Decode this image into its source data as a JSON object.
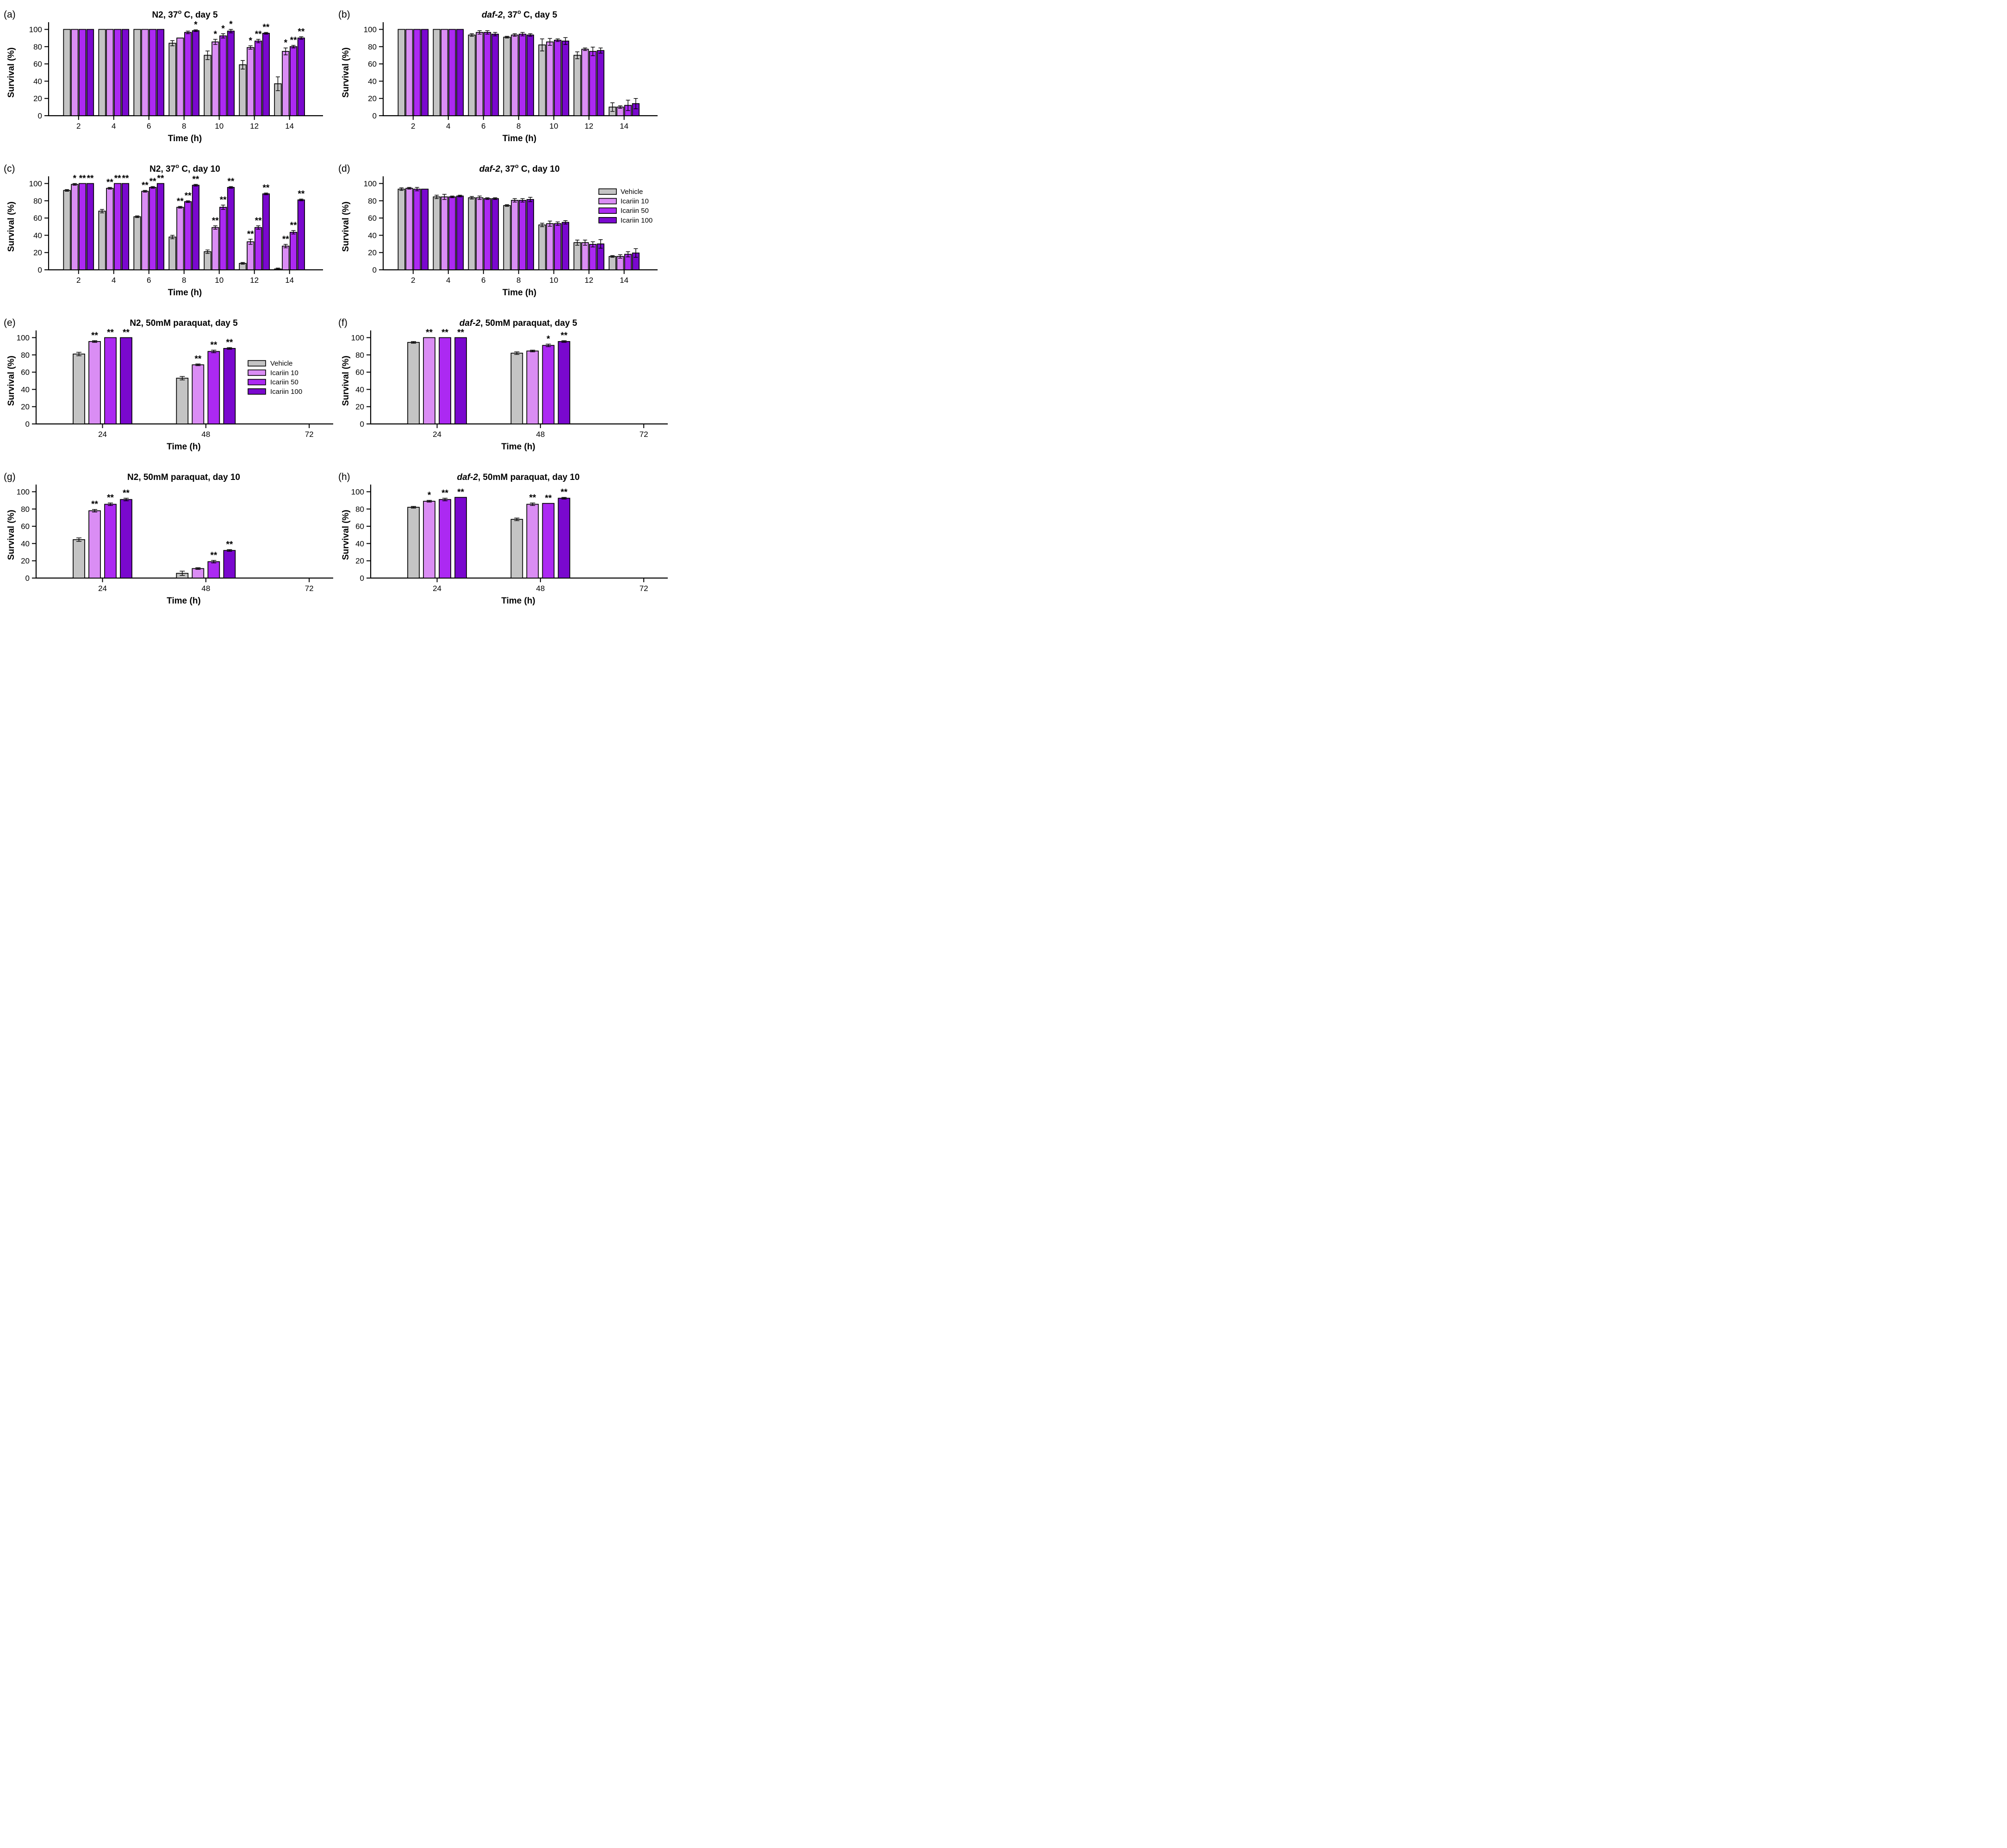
{
  "figure": {
    "background": "#FFFFFF",
    "ylabel": "Survival (%)",
    "xlabel": "Time (h)",
    "yticks": [
      0,
      20,
      40,
      60,
      80,
      100
    ],
    "ylim": [
      0,
      100
    ],
    "legend_labels": [
      "Vehicle",
      "Icariin 10",
      "Icariin 50",
      "Icariin 100"
    ],
    "series_colors": {
      "Vehicle": "#C4C4C4",
      "Icariin 10": "#DA8DF4",
      "Icariin 50": "#AC29F2",
      "Icariin 100": "#7A08CE"
    },
    "bar_outline": "#000000",
    "axis_color": "#000000"
  },
  "chart_data": [
    {
      "id": "a",
      "label": "(a)",
      "type": "bar",
      "title_text": "N2, 37° C, day 5",
      "title_parts": [
        {
          "text": "N2"
        },
        {
          "text": ", 37"
        },
        {
          "text": "o",
          "sup": true
        },
        {
          "text": " C, day 5"
        }
      ],
      "categories": [
        "2",
        "4",
        "6",
        "8",
        "10",
        "12",
        "14"
      ],
      "xlabel": "Time (h)",
      "ylabel": "Survival (%)",
      "ylim": [
        0,
        100
      ],
      "legend": null,
      "series": [
        {
          "name": "Vehicle",
          "values": [
            100,
            100,
            100,
            84,
            70,
            59,
            37
          ],
          "errors": [
            0,
            0,
            0,
            3,
            5,
            5,
            8
          ],
          "sig": [
            "",
            "",
            "",
            "",
            "",
            "",
            ""
          ]
        },
        {
          "name": "Icariin 10",
          "values": [
            100,
            100,
            100,
            90,
            85.5,
            79,
            74.5
          ],
          "errors": [
            0,
            0,
            0,
            0,
            3,
            2,
            4
          ],
          "sig": [
            "",
            "",
            "",
            "",
            "*",
            "*",
            "*"
          ]
        },
        {
          "name": "Icariin 50",
          "values": [
            100,
            100,
            100,
            96.5,
            92.5,
            86.5,
            80
          ],
          "errors": [
            0,
            0,
            0,
            1.5,
            2.5,
            2,
            1.5
          ],
          "sig": [
            "",
            "",
            "",
            "",
            "*",
            "**",
            "**"
          ]
        },
        {
          "name": "Icariin 100",
          "values": [
            100,
            100,
            100,
            98.5,
            98,
            95.5,
            90
          ],
          "errors": [
            0,
            0,
            0,
            1,
            2,
            1,
            1.5
          ],
          "sig": [
            "",
            "",
            "",
            "*",
            "*",
            "**",
            "**"
          ]
        }
      ]
    },
    {
      "id": "b",
      "label": "(b)",
      "type": "bar",
      "title_text": "daf-2, 37° C, day 5",
      "title_parts": [
        {
          "text": "daf-2",
          "italic": true
        },
        {
          "text": ", 37"
        },
        {
          "text": "o",
          "sup": true
        },
        {
          "text": " C, day 5"
        }
      ],
      "categories": [
        "2",
        "4",
        "6",
        "8",
        "10",
        "12",
        "14"
      ],
      "xlabel": "Time (h)",
      "ylabel": "Survival (%)",
      "ylim": [
        0,
        100
      ],
      "legend": null,
      "series": [
        {
          "name": "Vehicle",
          "values": [
            100,
            100,
            93.5,
            91,
            82,
            70,
            10
          ],
          "errors": [
            0,
            0,
            1.5,
            1,
            7,
            4,
            5
          ],
          "sig": [
            "",
            "",
            "",
            "",
            "",
            "",
            ""
          ]
        },
        {
          "name": "Icariin 10",
          "values": [
            100,
            100,
            96.5,
            93.5,
            85.5,
            77,
            10
          ],
          "errors": [
            0,
            0,
            2,
            1.5,
            4,
            1.5,
            1.5
          ],
          "sig": [
            "",
            "",
            "",
            "",
            "",
            "",
            ""
          ]
        },
        {
          "name": "Icariin 50",
          "values": [
            100,
            100,
            96.5,
            94.5,
            87.5,
            74.5,
            12
          ],
          "errors": [
            0,
            0,
            2,
            2,
            1.5,
            5,
            6
          ],
          "sig": [
            "",
            "",
            "",
            "",
            "",
            "",
            ""
          ]
        },
        {
          "name": "Icariin 100",
          "values": [
            100,
            100,
            94.5,
            93.5,
            86.5,
            75.5,
            14
          ],
          "errors": [
            0,
            0,
            2,
            1.5,
            4,
            3,
            6
          ],
          "sig": [
            "",
            "",
            "",
            "",
            "",
            "",
            ""
          ]
        }
      ]
    },
    {
      "id": "c",
      "label": "(c)",
      "type": "bar",
      "title_text": "N2, 37° C, day 10",
      "title_parts": [
        {
          "text": "N2"
        },
        {
          "text": ", 37"
        },
        {
          "text": "o",
          "sup": true
        },
        {
          "text": " C, day 10"
        }
      ],
      "categories": [
        "2",
        "4",
        "6",
        "8",
        "10",
        "12",
        "14"
      ],
      "xlabel": "Time (h)",
      "ylabel": "Survival (%)",
      "ylim": [
        0,
        100
      ],
      "legend": null,
      "series": [
        {
          "name": "Vehicle",
          "values": [
            92,
            68,
            61.5,
            38,
            21,
            7.5,
            1
          ],
          "errors": [
            1,
            2,
            1,
            2,
            2,
            1,
            1
          ],
          "sig": [
            "",
            "",
            "",
            "",
            "",
            "",
            ""
          ]
        },
        {
          "name": "Icariin 10",
          "values": [
            99,
            94.5,
            91,
            72.5,
            49,
            32.5,
            27.5
          ],
          "errors": [
            1,
            1,
            1,
            1,
            2,
            3,
            2
          ],
          "sig": [
            "*",
            "**",
            "**",
            "**",
            "**",
            "**",
            "**"
          ]
        },
        {
          "name": "Icariin 50",
          "values": [
            100,
            100,
            95.5,
            79,
            72.5,
            49,
            43.5
          ],
          "errors": [
            0,
            0,
            1,
            1,
            2.5,
            2,
            2
          ],
          "sig": [
            "**",
            "**",
            "**",
            "**",
            "**",
            "**",
            "**"
          ]
        },
        {
          "name": "Icariin 100",
          "values": [
            100,
            100,
            100,
            98,
            95.5,
            88,
            81
          ],
          "errors": [
            0,
            0,
            0,
            1,
            1,
            1,
            1
          ],
          "sig": [
            "**",
            "**",
            "**",
            "**",
            "**",
            "**",
            "**"
          ]
        }
      ]
    },
    {
      "id": "d",
      "label": "(d)",
      "type": "bar",
      "title_text": "daf-2, 37° C, day 10",
      "title_parts": [
        {
          "text": "daf-2",
          "italic": true
        },
        {
          "text": ", 37"
        },
        {
          "text": "o",
          "sup": true
        },
        {
          "text": " C, day 10"
        }
      ],
      "categories": [
        "2",
        "4",
        "6",
        "8",
        "10",
        "12",
        "14"
      ],
      "xlabel": "Time (h)",
      "ylabel": "Survival (%)",
      "ylim": [
        0,
        100
      ],
      "legend": "top",
      "series": [
        {
          "name": "Vehicle",
          "values": [
            93.5,
            84.5,
            83.5,
            74.5,
            52,
            31.5,
            15.5
          ],
          "errors": [
            1.5,
            2,
            1.5,
            1,
            2,
            3,
            1
          ],
          "sig": [
            "",
            "",
            "",
            "",
            "",
            "",
            ""
          ]
        },
        {
          "name": "Icariin 10",
          "values": [
            94.5,
            84.5,
            83.5,
            80.5,
            53.5,
            31.5,
            15.5
          ],
          "errors": [
            1,
            3,
            2,
            2,
            3,
            3,
            2
          ],
          "sig": [
            "",
            "",
            "",
            "",
            "",
            "",
            ""
          ]
        },
        {
          "name": "Icariin 50",
          "values": [
            93.5,
            84.5,
            82.5,
            80.5,
            53.5,
            29.5,
            18
          ],
          "errors": [
            2,
            1,
            1,
            2,
            2,
            3,
            3
          ],
          "sig": [
            "",
            "",
            "",
            "",
            "",
            "",
            ""
          ]
        },
        {
          "name": "Icariin 100",
          "values": [
            93.5,
            85.5,
            82.5,
            81.5,
            55,
            30,
            19.5
          ],
          "errors": [
            0,
            1,
            1,
            2.5,
            2,
            5,
            5
          ],
          "sig": [
            "",
            "",
            "",
            "",
            "",
            "",
            ""
          ]
        }
      ]
    },
    {
      "id": "e",
      "label": "(e)",
      "type": "bar",
      "title_text": "N2, 50mM paraquat, day 5",
      "title_parts": [
        {
          "text": "N2"
        },
        {
          "text": ", 50mM paraquat, day 5"
        }
      ],
      "categories": [
        "24",
        "48",
        "72"
      ],
      "xlabel": "Time (h)",
      "ylabel": "Survival (%)",
      "ylim": [
        0,
        100
      ],
      "legend": "mid",
      "series": [
        {
          "name": "Vehicle",
          "values": [
            81,
            53,
            null
          ],
          "errors": [
            2,
            2,
            0
          ],
          "sig": [
            "",
            "",
            ""
          ]
        },
        {
          "name": "Icariin 10",
          "values": [
            95.5,
            68.5,
            null
          ],
          "errors": [
            1,
            1,
            0
          ],
          "sig": [
            "**",
            "**",
            ""
          ]
        },
        {
          "name": "Icariin 50",
          "values": [
            100,
            84,
            null
          ],
          "errors": [
            0,
            1.5,
            0
          ],
          "sig": [
            "**",
            "**",
            ""
          ]
        },
        {
          "name": "Icariin 100",
          "values": [
            100,
            87.5,
            null
          ],
          "errors": [
            0,
            1,
            0
          ],
          "sig": [
            "**",
            "**",
            ""
          ]
        }
      ]
    },
    {
      "id": "f",
      "label": "(f)",
      "type": "bar",
      "title_text": "daf-2, 50mM paraquat, day 5",
      "title_parts": [
        {
          "text": "daf-2",
          "italic": true
        },
        {
          "text": ", 50mM paraquat, day 5"
        }
      ],
      "categories": [
        "24",
        "48",
        "72"
      ],
      "xlabel": "Time (h)",
      "ylabel": "Survival (%)",
      "ylim": [
        0,
        100
      ],
      "legend": null,
      "series": [
        {
          "name": "Vehicle",
          "values": [
            94.5,
            82,
            null
          ],
          "errors": [
            1,
            1.5,
            0
          ],
          "sig": [
            "",
            "",
            ""
          ]
        },
        {
          "name": "Icariin 10",
          "values": [
            100,
            84.5,
            null
          ],
          "errors": [
            0,
            1,
            0
          ],
          "sig": [
            "**",
            "",
            ""
          ]
        },
        {
          "name": "Icariin 50",
          "values": [
            100,
            91,
            null
          ],
          "errors": [
            0,
            1.5,
            0
          ],
          "sig": [
            "**",
            "*",
            ""
          ]
        },
        {
          "name": "Icariin 100",
          "values": [
            100,
            95.5,
            null
          ],
          "errors": [
            0,
            1,
            0
          ],
          "sig": [
            "**",
            "**",
            ""
          ]
        }
      ]
    },
    {
      "id": "g",
      "label": "(g)",
      "type": "bar",
      "title_text": "N2, 50mM paraquat, day 10",
      "title_parts": [
        {
          "text": "N2"
        },
        {
          "text": ", 50mM paraquat, day 10"
        }
      ],
      "categories": [
        "24",
        "48",
        "72"
      ],
      "xlabel": "Time (h)",
      "ylabel": "Survival (%)",
      "ylim": [
        0,
        100
      ],
      "legend": null,
      "series": [
        {
          "name": "Vehicle",
          "values": [
            44.5,
            5.5,
            null
          ],
          "errors": [
            2,
            2.5,
            0
          ],
          "sig": [
            "",
            "",
            ""
          ]
        },
        {
          "name": "Icariin 10",
          "values": [
            78,
            11,
            null
          ],
          "errors": [
            1.5,
            1,
            0
          ],
          "sig": [
            "**",
            "",
            ""
          ]
        },
        {
          "name": "Icariin 50",
          "values": [
            85.5,
            19,
            null
          ],
          "errors": [
            1.5,
            1.5,
            0
          ],
          "sig": [
            "**",
            "**",
            ""
          ]
        },
        {
          "name": "Icariin 100",
          "values": [
            91,
            32,
            null
          ],
          "errors": [
            1.5,
            1,
            0
          ],
          "sig": [
            "**",
            "**",
            ""
          ]
        }
      ]
    },
    {
      "id": "h",
      "label": "(h)",
      "type": "bar",
      "title_text": "daf-2, 50mM paraquat, day 10",
      "title_parts": [
        {
          "text": "daf-2",
          "italic": true
        },
        {
          "text": ", 50mM paraquat, day 10"
        }
      ],
      "categories": [
        "24",
        "48",
        "72"
      ],
      "xlabel": "Time (h)",
      "ylabel": "Survival (%)",
      "ylim": [
        0,
        100
      ],
      "legend": null,
      "series": [
        {
          "name": "Vehicle",
          "values": [
            82,
            68,
            null
          ],
          "errors": [
            1,
            1.5,
            0
          ],
          "sig": [
            "",
            "",
            ""
          ]
        },
        {
          "name": "Icariin 10",
          "values": [
            89,
            85.5,
            null
          ],
          "errors": [
            1,
            1.5,
            0
          ],
          "sig": [
            "*",
            "**",
            ""
          ]
        },
        {
          "name": "Icariin 50",
          "values": [
            91,
            86.5,
            null
          ],
          "errors": [
            1.5,
            0,
            0
          ],
          "sig": [
            "**",
            "**",
            ""
          ]
        },
        {
          "name": "Icariin 100",
          "values": [
            93.5,
            92.5,
            null
          ],
          "errors": [
            0,
            1,
            0
          ],
          "sig": [
            "**",
            "**",
            ""
          ]
        }
      ]
    }
  ]
}
